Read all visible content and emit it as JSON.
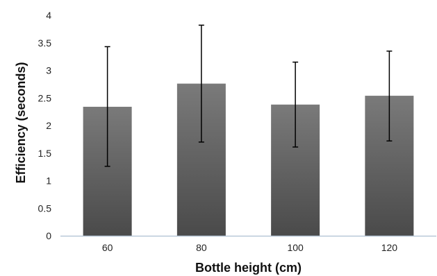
{
  "chart_data": {
    "type": "bar",
    "title": "",
    "xlabel": "Bottle height (cm)",
    "ylabel": "Efficiency (seconds)",
    "categories": [
      "60",
      "80",
      "100",
      "120"
    ],
    "values": [
      2.34,
      2.76,
      2.38,
      2.54
    ],
    "error_upper": [
      3.43,
      3.82,
      3.15,
      3.35
    ],
    "error_lower": [
      1.26,
      1.7,
      1.61,
      1.72
    ],
    "ylim": [
      0,
      4
    ],
    "yticks": [
      "0",
      "0.5",
      "1",
      "1.5",
      "2",
      "2.5",
      "3",
      "3.5",
      "4"
    ],
    "grid": false,
    "legend": "none",
    "colors": {
      "bar_top": "#7a7a7a",
      "bar_bottom": "#4a4a4a",
      "axis": "#b8c8d8",
      "error": "#000000"
    }
  }
}
